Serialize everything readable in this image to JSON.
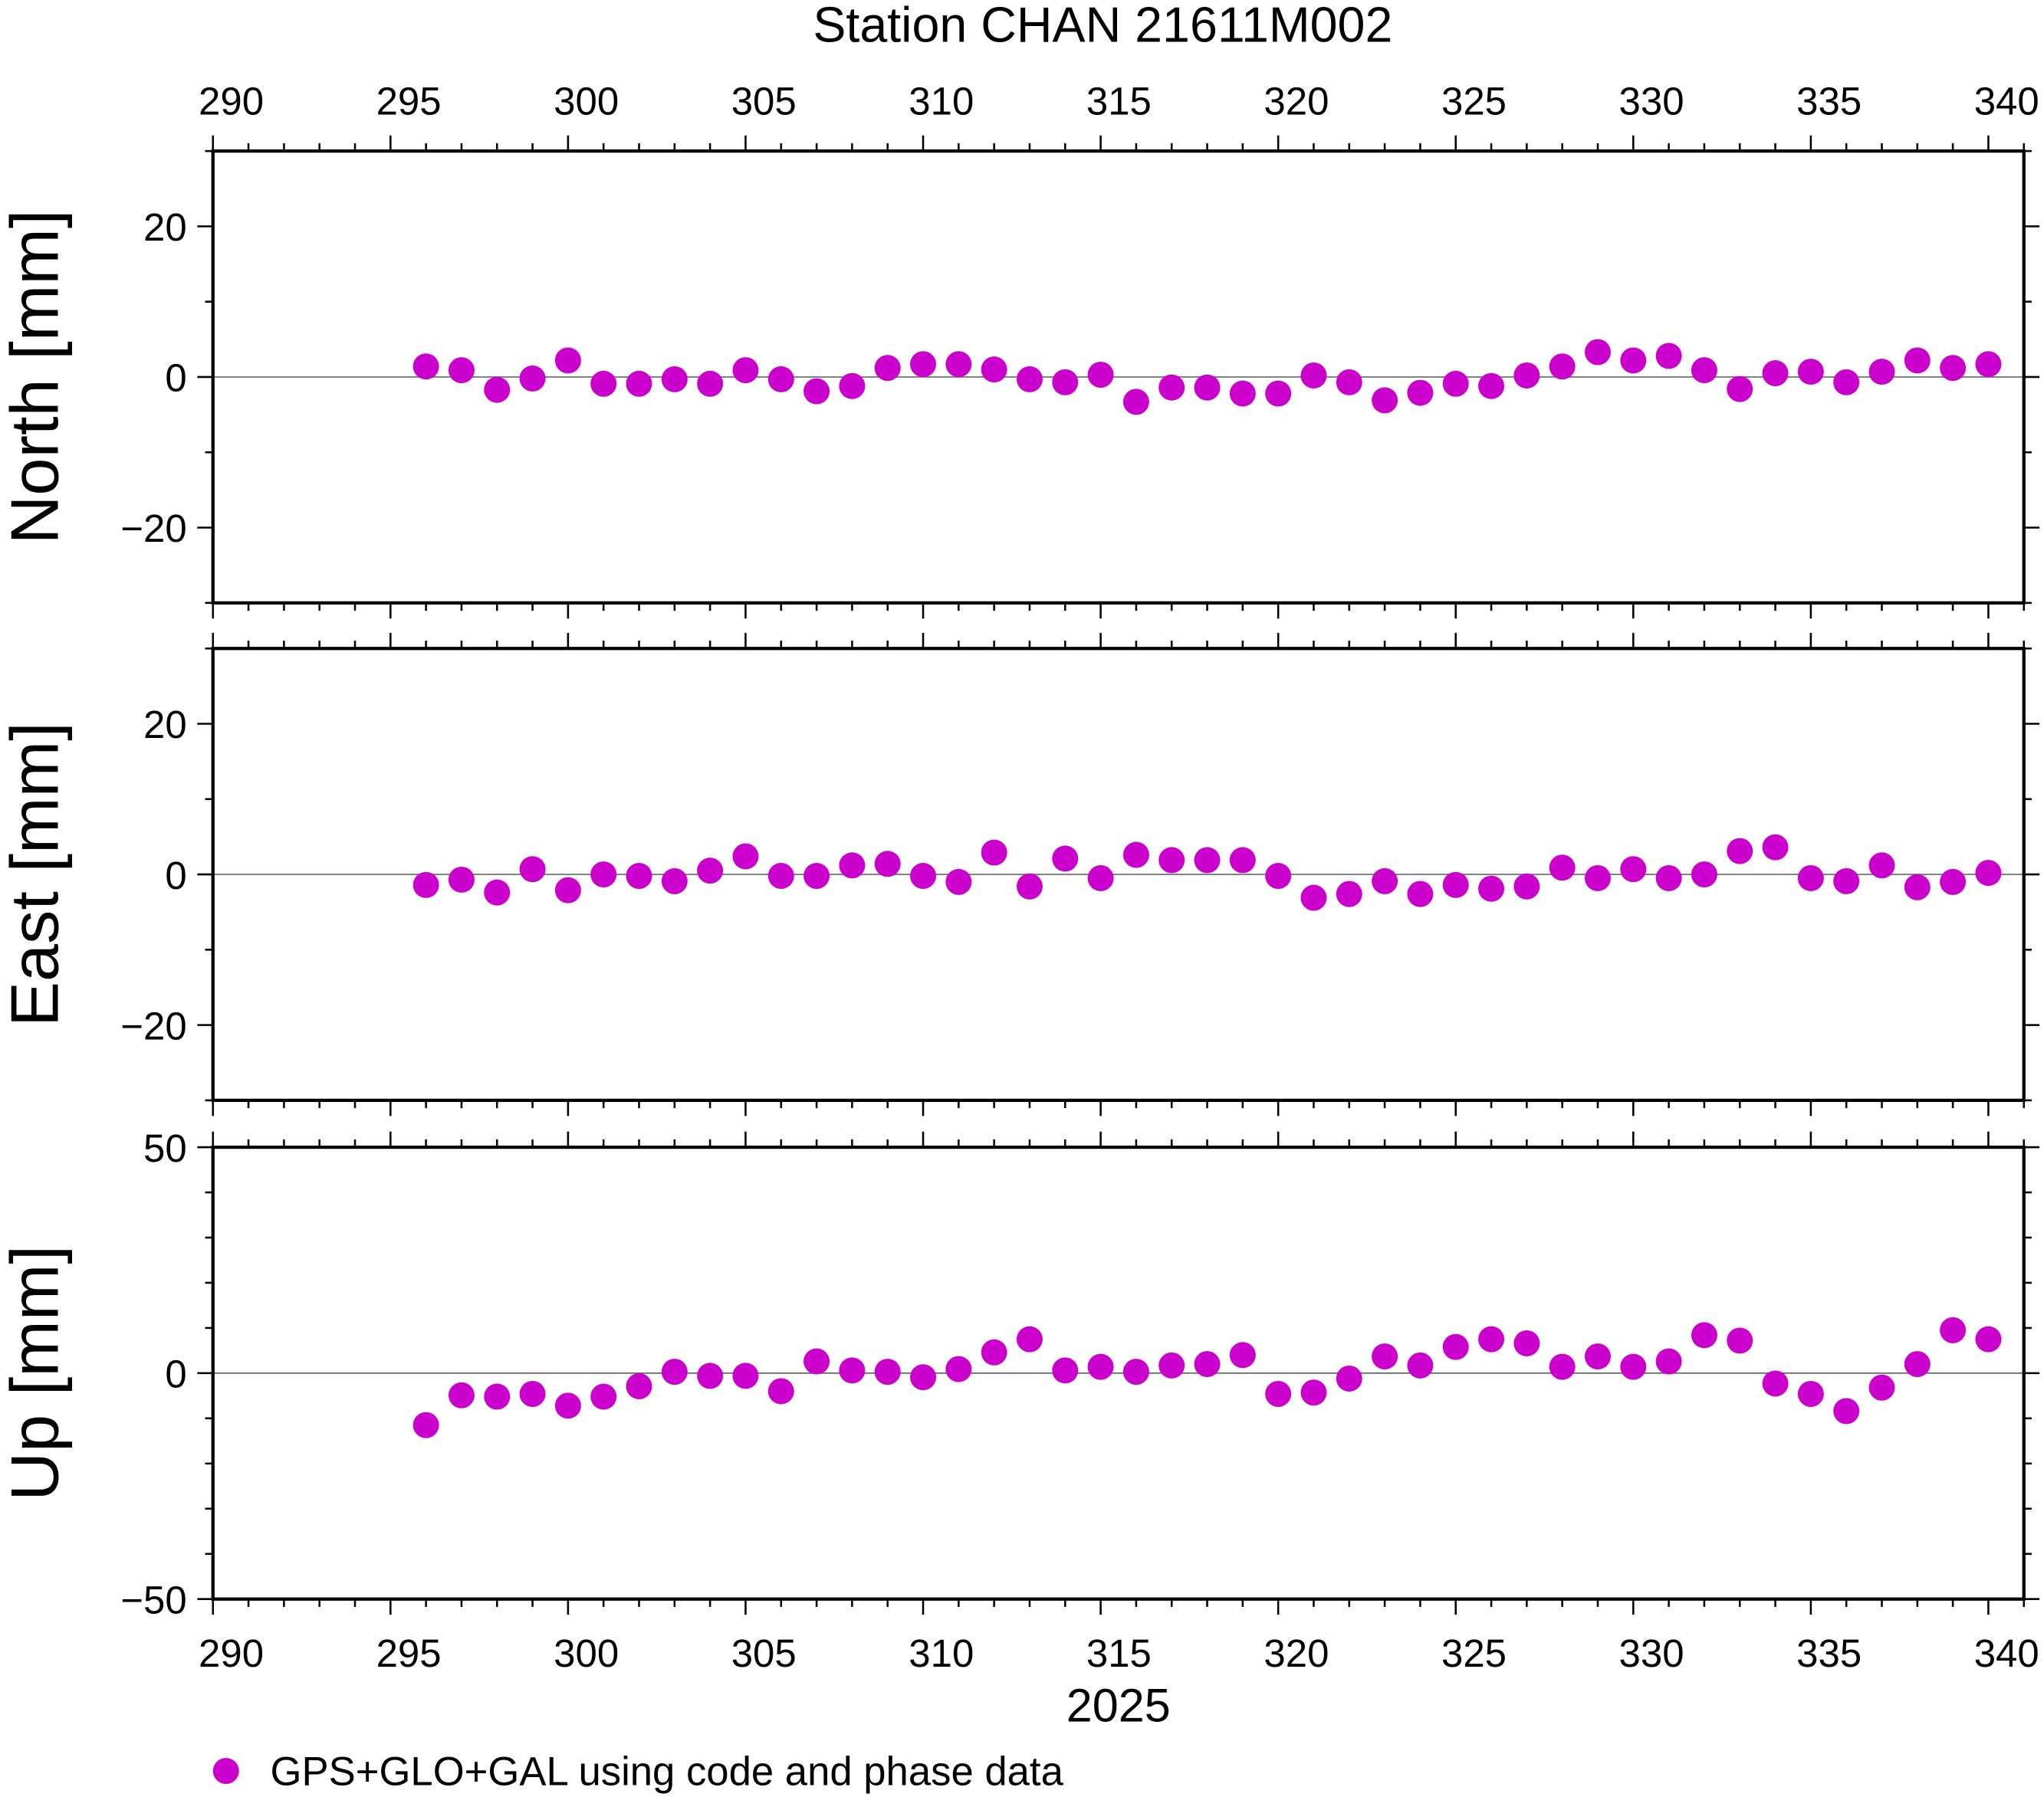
{
  "chart_data": {
    "type": "scatter",
    "title": "Station CHAN 21611M002",
    "xlabel": "2025",
    "xlim": [
      290,
      341
    ],
    "xticks": [
      290,
      295,
      300,
      305,
      310,
      315,
      320,
      325,
      330,
      335,
      340
    ],
    "marker_color": "#cc00cc",
    "legend": {
      "label": "GPS+GLO+GAL using code and phase data",
      "placement": "bottom-left"
    },
    "x": [
      296,
      297,
      298,
      299,
      300,
      301,
      302,
      303,
      304,
      305,
      306,
      307,
      308,
      309,
      310,
      311,
      312,
      313,
      314,
      315,
      316,
      317,
      318,
      319,
      320,
      321,
      322,
      323,
      324,
      325,
      326,
      327,
      328,
      329,
      330,
      331,
      332,
      333,
      334,
      335,
      336,
      337,
      338,
      339,
      340
    ],
    "panels": [
      {
        "name": "North",
        "ylabel": "North [mm]",
        "ylim": [
          -30,
          30
        ],
        "yticks": [
          -20,
          0,
          20
        ],
        "values": [
          1.4,
          0.9,
          -1.7,
          -0.2,
          2.2,
          -0.9,
          -0.9,
          -0.3,
          -0.9,
          0.9,
          -0.3,
          -1.9,
          -1.2,
          1.2,
          1.7,
          1.7,
          1.0,
          -0.3,
          -0.7,
          0.3,
          -3.3,
          -1.4,
          -1.4,
          -2.2,
          -2.2,
          0.2,
          -0.7,
          -3.1,
          -2.1,
          -0.9,
          -1.2,
          0.2,
          1.4,
          3.3,
          2.2,
          2.8,
          0.9,
          -1.6,
          0.5,
          0.7,
          -0.7,
          0.7,
          2.2,
          1.2,
          1.7
        ]
      },
      {
        "name": "East",
        "ylabel": "East [mm]",
        "ylim": [
          -30,
          30
        ],
        "yticks": [
          -20,
          0,
          20
        ],
        "values": [
          -1.4,
          -0.7,
          -2.4,
          0.7,
          -2.1,
          0.0,
          -0.2,
          -0.9,
          0.5,
          2.4,
          -0.2,
          -0.2,
          1.2,
          1.4,
          -0.2,
          -1.0,
          2.9,
          -1.6,
          2.1,
          -0.5,
          2.6,
          1.9,
          1.9,
          1.9,
          -0.2,
          -3.1,
          -2.6,
          -0.9,
          -2.6,
          -1.4,
          -1.9,
          -1.6,
          0.9,
          -0.5,
          0.7,
          -0.5,
          0.0,
          3.1,
          3.6,
          -0.5,
          -0.9,
          1.2,
          -1.7,
          -1.0,
          0.2
        ]
      },
      {
        "name": "Up",
        "ylabel": "Up [mm]",
        "ylim": [
          -50,
          50
        ],
        "yticks": [
          -50,
          0,
          50
        ],
        "values": [
          -11.5,
          -4.9,
          -5.2,
          -4.6,
          -7.2,
          -5.2,
          -2.9,
          0.3,
          -0.6,
          -0.6,
          -4.0,
          2.6,
          0.6,
          0.3,
          -0.9,
          0.9,
          4.6,
          7.5,
          0.6,
          1.4,
          0.3,
          1.7,
          2.0,
          4.0,
          -4.6,
          -4.3,
          -1.2,
          3.7,
          1.7,
          5.8,
          7.5,
          6.6,
          1.4,
          3.7,
          1.4,
          2.6,
          8.4,
          7.2,
          -2.3,
          -4.6,
          -8.4,
          -3.2,
          2.0,
          9.5,
          7.5
        ]
      }
    ]
  }
}
